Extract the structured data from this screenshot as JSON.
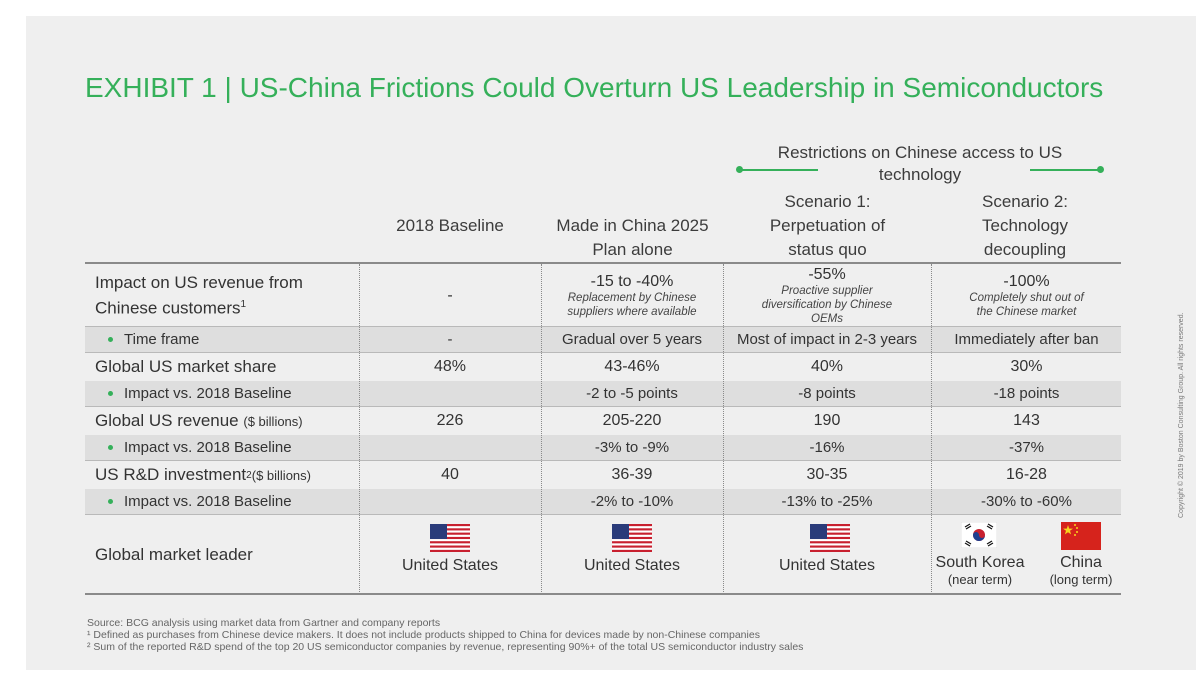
{
  "title": "EXHIBIT 1 | US-China Frictions Could Overturn US Leadership in Semiconductors",
  "restrictions_header": "Restrictions on Chinese access to US technology",
  "columns": [
    "2018 Baseline",
    "Made in China 2025 Plan alone",
    "Scenario 1: Perpetuation of status quo",
    "Scenario 2: Technology decoupling"
  ],
  "rows": {
    "impact_revenue": {
      "label": "Impact on US revenue from Chinese customers",
      "footnote_mark": "1",
      "baseline": "-",
      "mic": {
        "value": "-15 to -40%",
        "note": "Replacement by Chinese suppliers where available"
      },
      "s1": {
        "value": "-55%",
        "note": "Proactive supplier diversification by Chinese OEMs"
      },
      "s2": {
        "value": "-100%",
        "note": "Completely shut out of the Chinese market"
      }
    },
    "time_frame": {
      "label": "Time frame",
      "baseline": "-",
      "mic": "Gradual over 5 years",
      "s1": "Most of impact in 2-3 years",
      "s2": "Immediately after ban"
    },
    "market_share": {
      "label": "Global US market share",
      "baseline": "48%",
      "mic": "43-46%",
      "s1": "40%",
      "s2": "30%"
    },
    "market_share_impact": {
      "label": "Impact vs. 2018 Baseline",
      "mic": "-2 to -5 points",
      "s1": "-8 points",
      "s2": "-18 points"
    },
    "revenue": {
      "label": "Global US revenue",
      "units": "($ billions)",
      "baseline": "226",
      "mic": "205-220",
      "s1": "190",
      "s2": "143"
    },
    "revenue_impact": {
      "label": "Impact vs. 2018 Baseline",
      "mic": "-3% to -9%",
      "s1": "-16%",
      "s2": "-37%"
    },
    "rd": {
      "label": "US R&D investment",
      "footnote_mark": "2",
      "units": "($ billions)",
      "baseline": "40",
      "mic": "36-39",
      "s1": "30-35",
      "s2": "16-28"
    },
    "rd_impact": {
      "label": "Impact vs. 2018 Baseline",
      "mic": "-2% to -10%",
      "s1": "-13% to -25%",
      "s2": "-30% to -60%"
    },
    "leader": {
      "label": "Global market leader",
      "baseline": "United States",
      "mic": "United States",
      "s1": "United States",
      "s2a": "South Korea",
      "s2a_note": "(near term)",
      "s2b": "China",
      "s2b_note": "(long term)"
    }
  },
  "sources": {
    "line1": "Source: BCG analysis using market data from Gartner and company reports",
    "line2": "¹ Defined as purchases from Chinese device makers. It does not include products shipped to China for devices made by non-Chinese companies",
    "line3": "² Sum of the reported R&D spend of the top 20 US semiconductor companies by revenue, representing 90%+ of the total US semiconductor industry sales"
  },
  "copyright": "Copyright © 2019 by Boston Consulting Group. All rights reserved.",
  "colors": {
    "accent": "#35b05a",
    "text": "#333333",
    "row_shade": "#dedede",
    "card": "#efefef"
  },
  "icons": [
    "us-flag-icon",
    "korea-flag-icon",
    "china-flag-icon",
    "bullet-dot-icon"
  ]
}
